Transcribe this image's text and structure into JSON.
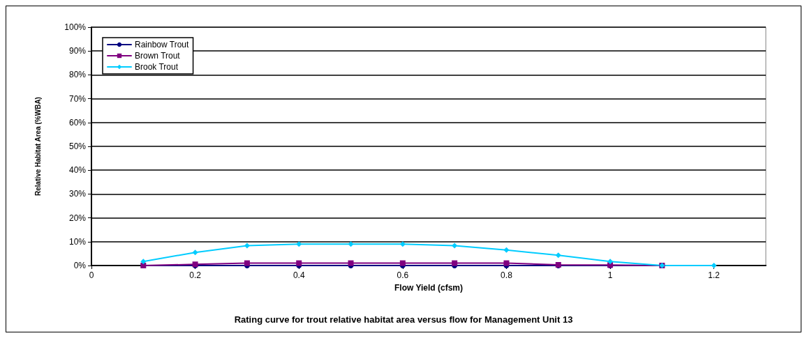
{
  "chart_data": {
    "type": "line",
    "title": "Rating curve for trout relative habitat area versus flow for Management Unit 13",
    "xlabel": "Flow Yield (cfsm)",
    "ylabel": "Relative Habitat Area (%WBA)",
    "xlim": [
      0,
      1.3
    ],
    "xticks": [
      0,
      0.2,
      0.4,
      0.6,
      0.8,
      1,
      1.2
    ],
    "ylim": [
      0,
      100
    ],
    "yticks": [
      {
        "value": 0,
        "label": "0%"
      },
      {
        "value": 10,
        "label": "10%"
      },
      {
        "value": 20,
        "label": "20%"
      },
      {
        "value": 30,
        "label": "30%"
      },
      {
        "value": 40,
        "label": "40%"
      },
      {
        "value": 50,
        "label": "50%"
      },
      {
        "value": 60,
        "label": "60%"
      },
      {
        "value": 70,
        "label": "70%"
      },
      {
        "value": 80,
        "label": "80%"
      },
      {
        "value": 90,
        "label": "90%"
      },
      {
        "value": 100,
        "label": "100%"
      }
    ],
    "grid": "y",
    "legend": "top left",
    "line_style": "solid",
    "series": [
      {
        "name": "Rainbow Trout",
        "color": "#000080",
        "marker": "circle",
        "x": [
          0.1,
          0.2,
          0.3,
          0.4,
          0.5,
          0.6,
          0.7,
          0.8,
          0.9,
          1,
          1.1
        ],
        "values": [
          0,
          0,
          0,
          0,
          0,
          0,
          0,
          0,
          0,
          0,
          0
        ]
      },
      {
        "name": "Brown Trout",
        "color": "#800080",
        "marker": "square",
        "x": [
          0.1,
          0.2,
          0.3,
          0.4,
          0.5,
          0.6,
          0.7,
          0.8,
          0.9,
          1,
          1.1
        ],
        "values": [
          0,
          0.5,
          1,
          1,
          1,
          1,
          1,
          1,
          0.3,
          0.2,
          0
        ]
      },
      {
        "name": "Brook Trout",
        "color": "#00ccff",
        "marker": "diamond",
        "x": [
          0.1,
          0.2,
          0.3,
          0.4,
          0.5,
          0.6,
          0.7,
          0.8,
          0.9,
          1,
          1.1,
          1.2
        ],
        "values": [
          1.7,
          5.5,
          8.3,
          9,
          9,
          9,
          8.3,
          6.5,
          4.3,
          1.7,
          0,
          0
        ]
      }
    ]
  }
}
